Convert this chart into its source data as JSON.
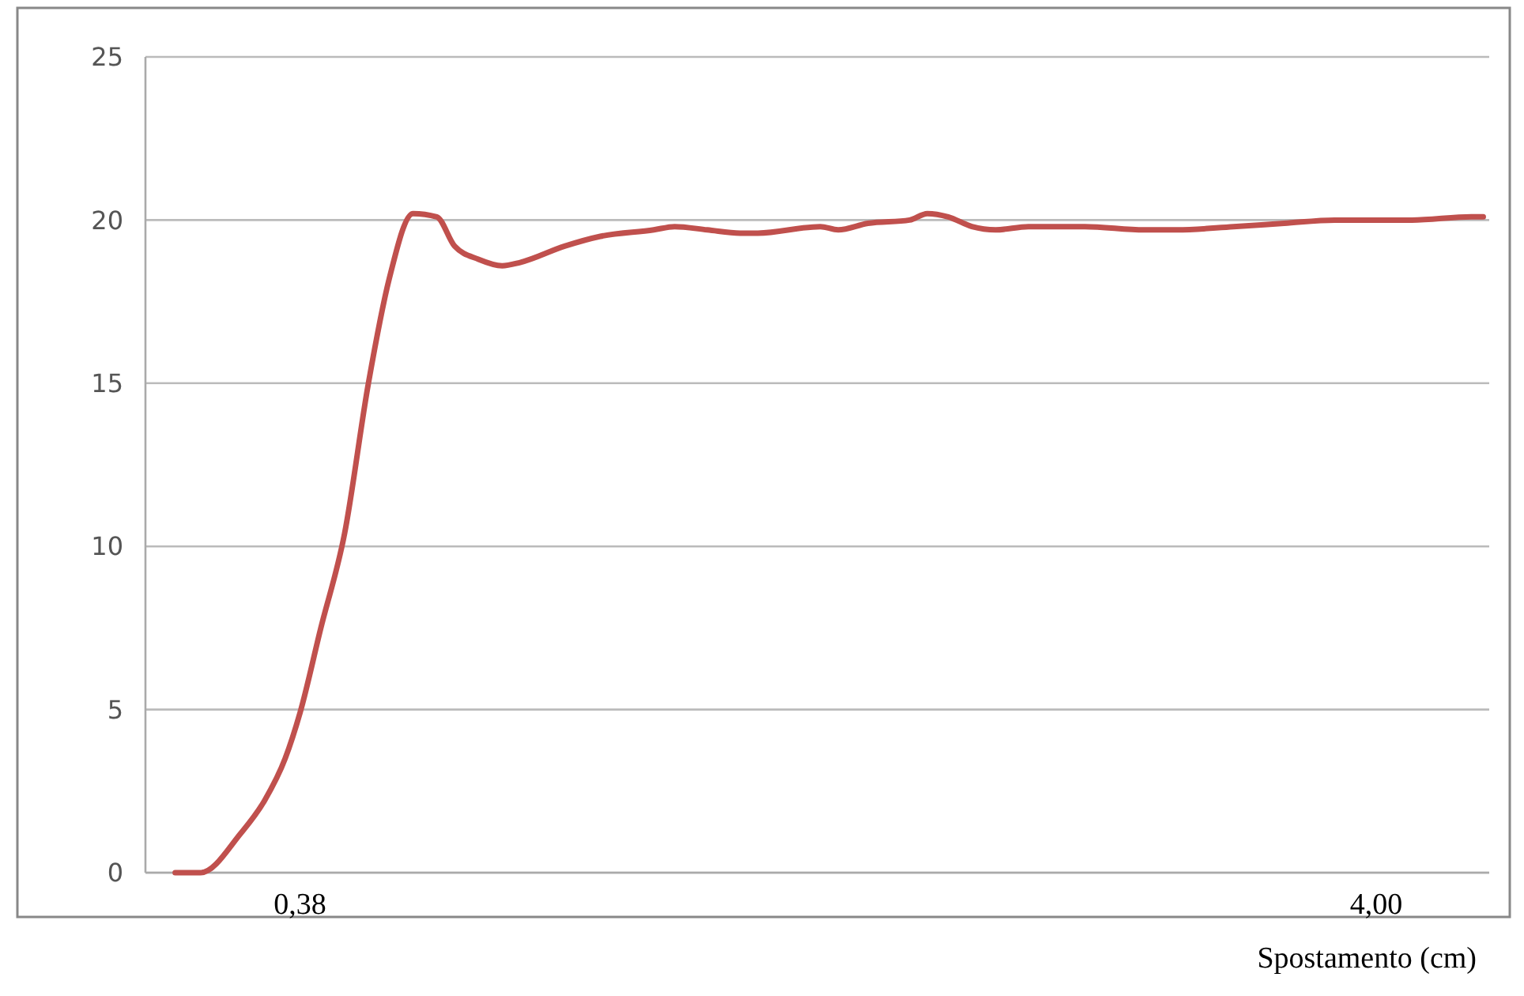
{
  "chart_data": {
    "type": "line",
    "xlabel": "Spostamento (cm)",
    "x": [
      -0.04,
      0.045,
      0.18,
      0.26,
      0.33,
      0.38,
      0.45,
      0.53,
      0.61,
      0.68,
      0.76,
      0.84,
      0.9,
      0.98,
      1.06,
      1.12,
      1.27,
      1.39,
      1.57,
      1.64,
      1.75,
      1.86,
      1.92,
      2.13,
      2.19,
      2.29,
      2.43,
      2.49,
      2.56,
      2.64,
      2.72,
      2.83,
      3.02,
      3.22,
      3.33,
      3.52,
      3.69,
      3.86,
      4.12,
      4.32,
      4.36
    ],
    "series": [
      {
        "color": "#c0504d",
        "values": [
          0,
          0,
          1.2,
          2.2,
          3.5,
          4.9,
          7.5,
          10.4,
          15.0,
          18.2,
          20.2,
          20.1,
          19.2,
          18.8,
          18.6,
          18.7,
          19.2,
          19.5,
          19.7,
          19.8,
          19.7,
          19.6,
          19.6,
          19.8,
          19.7,
          19.9,
          20.0,
          20.2,
          20.1,
          19.8,
          19.7,
          19.8,
          19.8,
          19.7,
          19.7,
          19.8,
          19.9,
          20.0,
          20.0,
          20.1,
          20.1
        ]
      }
    ],
    "xlim": [
      -0.14,
      4.38
    ],
    "xticks": [
      {
        "value": 0.38,
        "label": "0,38"
      },
      {
        "value": 4.0,
        "label": "4,00"
      }
    ],
    "ylim": [
      0,
      25
    ],
    "yticks": [
      0,
      5,
      10,
      15,
      20,
      25
    ],
    "grid": "y",
    "marker": "none",
    "line_style": "solid"
  }
}
